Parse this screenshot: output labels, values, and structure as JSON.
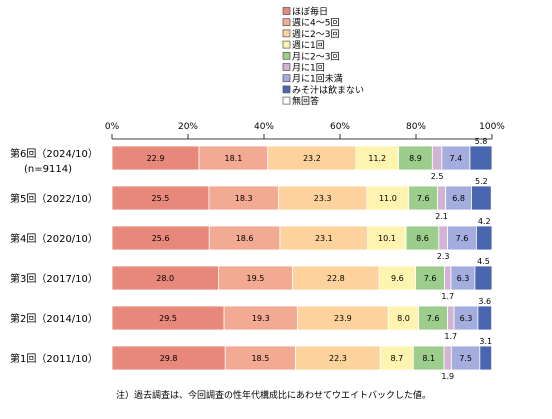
{
  "chart_data": {
    "type": "bar",
    "orientation": "horizontal",
    "stacked": true,
    "xlim": [
      0,
      100
    ],
    "x_tick_labels": [
      "0%",
      "20%",
      "40%",
      "60%",
      "80%",
      "100%"
    ],
    "categories": [
      "第6回（2024/10）",
      "第5回（2022/10）",
      "第4回（2020/10）",
      "第3回（2017/10）",
      "第2回（2014/10）",
      "第1回（2011/10）"
    ],
    "category_sublabels": [
      "(n=9114)",
      "",
      "",
      "",
      "",
      ""
    ],
    "series": [
      {
        "name": "ほぼ毎日",
        "color": "#e8887a",
        "values": [
          22.9,
          25.5,
          25.6,
          28.0,
          29.5,
          29.8
        ]
      },
      {
        "name": "週に4～5回",
        "color": "#f2aa92",
        "values": [
          18.1,
          18.3,
          18.6,
          19.5,
          19.3,
          18.5
        ]
      },
      {
        "name": "週に2～3回",
        "color": "#fdd29c",
        "values": [
          23.2,
          23.3,
          23.1,
          22.8,
          23.9,
          22.3
        ]
      },
      {
        "name": "週に1回",
        "color": "#fff3b0",
        "values": [
          11.2,
          11.0,
          10.1,
          9.6,
          8.0,
          8.7
        ]
      },
      {
        "name": "月に2～3回",
        "color": "#9dcd8c",
        "values": [
          8.9,
          7.6,
          8.6,
          7.6,
          7.6,
          8.1
        ]
      },
      {
        "name": "月に1回",
        "color": "#d3b3d3",
        "values": [
          2.5,
          2.1,
          2.3,
          1.7,
          1.7,
          1.9
        ]
      },
      {
        "name": "月に1回未満",
        "color": "#a4aede",
        "values": [
          7.4,
          6.8,
          7.6,
          6.3,
          6.3,
          7.5
        ]
      },
      {
        "name": "みそ汁は飲まない",
        "color": "#4a66b0",
        "values": [
          5.8,
          5.2,
          4.2,
          4.5,
          3.6,
          3.1
        ]
      },
      {
        "name": "無回答",
        "color": "#ffffff",
        "values": [
          0,
          0,
          0,
          0,
          0,
          0
        ]
      }
    ],
    "bar_value_labels": [
      [
        "22.9",
        "18.1",
        "23.2",
        "11.2",
        "8.9",
        "",
        "7.4",
        ""
      ],
      [
        "25.5",
        "18.3",
        "23.3",
        "11.0",
        "7.6",
        "",
        "6.8",
        ""
      ],
      [
        "25.6",
        "18.6",
        "23.1",
        "10.1",
        "8.6",
        "",
        "7.6",
        ""
      ],
      [
        "28.0",
        "19.5",
        "22.8",
        "9.6",
        "7.6",
        "",
        "6.3",
        ""
      ],
      [
        "29.5",
        "19.3",
        "23.9",
        "8.0",
        "7.6",
        "",
        "6.3",
        ""
      ],
      [
        "29.8",
        "18.5",
        "22.3",
        "8.7",
        "8.1",
        "",
        "7.5",
        ""
      ]
    ],
    "callouts": [
      {
        "row": 0,
        "above": "5.8",
        "below": "2.5"
      },
      {
        "row": 1,
        "above": "5.2",
        "below": "2.1"
      },
      {
        "row": 2,
        "above": "4.2",
        "below": "2.3"
      },
      {
        "row": 3,
        "above": "4.5",
        "below": "1.7"
      },
      {
        "row": 4,
        "above": "3.6",
        "below": "1.7"
      },
      {
        "row": 5,
        "above": "3.1",
        "below": "1.9"
      }
    ],
    "legend_placement": "top-center",
    "grid": false
  },
  "note": "注）過去調査は、今回調査の性年代構成比にあわせてウエイトバックした値。"
}
